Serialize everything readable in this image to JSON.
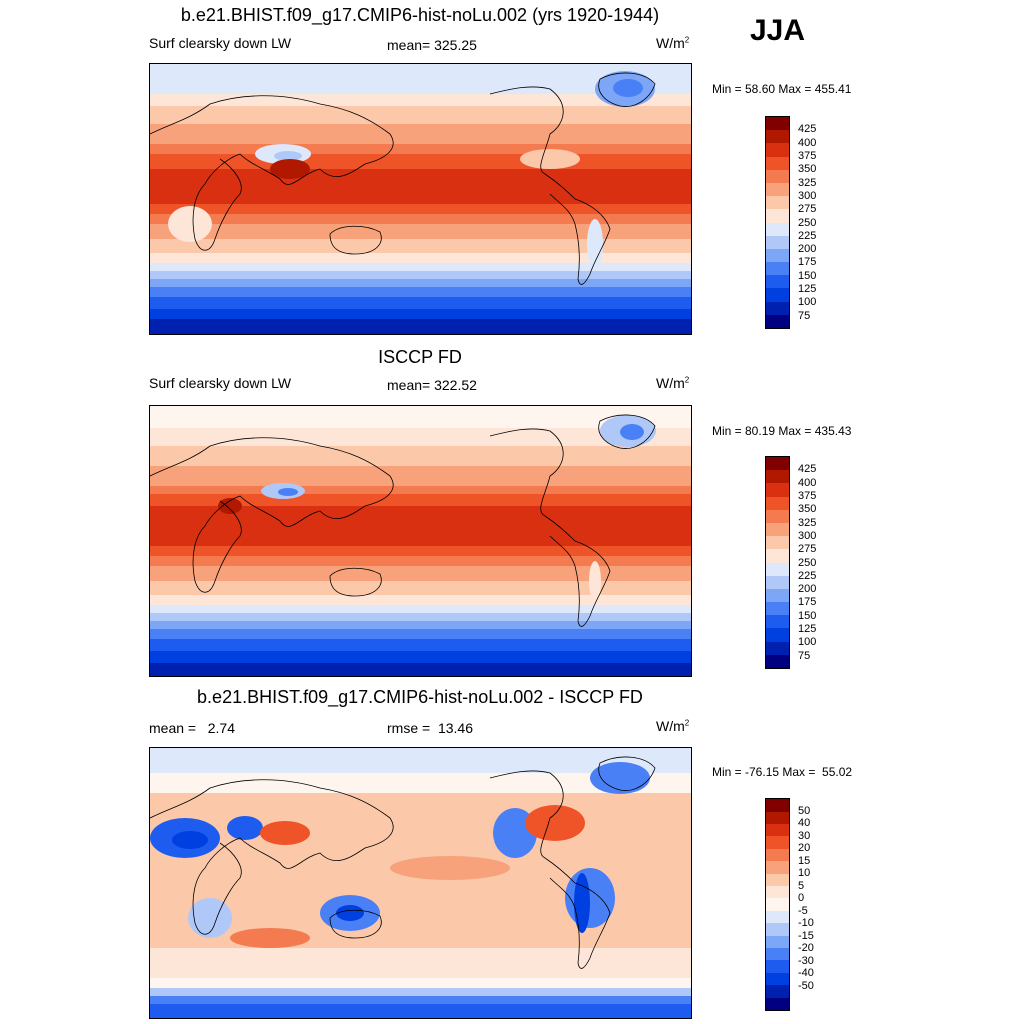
{
  "season_label": "JJA",
  "colors": {
    "abs_scale": [
      "#000080",
      "#0020b0",
      "#0040e0",
      "#1e5cf0",
      "#4a80f5",
      "#7ea6f7",
      "#b0c8f8",
      "#dde8fb",
      "#fde6d8",
      "#fbc9aa",
      "#f7a27a",
      "#f47a50",
      "#ee5428",
      "#d83010",
      "#b01800",
      "#800000"
    ],
    "diff_scale": [
      "#000080",
      "#0020b0",
      "#0040e0",
      "#1e5cf0",
      "#4a80f5",
      "#7ea6f7",
      "#b0c8f8",
      "#dde8fb",
      "#fdf5ee",
      "#fde6d8",
      "#fbc9aa",
      "#f7a27a",
      "#f47a50",
      "#ee5428",
      "#d83010",
      "#b01800",
      "#800000"
    ],
    "coastline": "#000000"
  },
  "panels": [
    {
      "title": "b.e21.BHIST.f09_g17.CMIP6-hist-noLu.002 (yrs 1920-1944)",
      "left": "Surf clearsky down LW",
      "center": "mean= 325.25",
      "units": "W/m",
      "units_sup": "2",
      "minmax": "Min =  58.60 Max = 455.41",
      "legend_labels": [
        "425",
        "400",
        "375",
        "350",
        "325",
        "300",
        "275",
        "250",
        "225",
        "200",
        "175",
        "150",
        "125",
        "100",
        "75"
      ]
    },
    {
      "title": "ISCCP FD",
      "left": "Surf clearsky down LW",
      "center": "mean= 322.52",
      "units": "W/m",
      "units_sup": "2",
      "minmax": "Min =  80.19 Max = 435.43",
      "legend_labels": [
        "425",
        "400",
        "375",
        "350",
        "325",
        "300",
        "275",
        "250",
        "225",
        "200",
        "175",
        "150",
        "125",
        "100",
        "75"
      ]
    },
    {
      "title": "b.e21.BHIST.f09_g17.CMIP6-hist-noLu.002 - ISCCP FD",
      "left": "mean =   2.74",
      "center": "rmse =  13.46",
      "units": "W/m",
      "units_sup": "2",
      "minmax": "Min = -76.15 Max =  55.02",
      "legend_labels": [
        "50",
        "40",
        "30",
        "20",
        "15",
        "10",
        "5",
        "0",
        "-5",
        "-10",
        "-15",
        "-20",
        "-30",
        "-40",
        "-50"
      ]
    }
  ]
}
